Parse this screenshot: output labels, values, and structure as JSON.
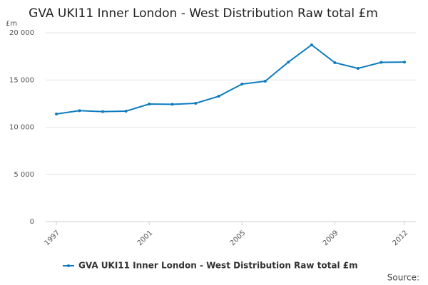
{
  "chart_data": {
    "type": "line",
    "title": "GVA UKI11 Inner London - West Distribution Raw total £m",
    "y_label": "£m",
    "source": "Source:",
    "x": [
      1997,
      1998,
      1999,
      2000,
      2001,
      2002,
      2003,
      2004,
      2005,
      2006,
      2007,
      2008,
      2009,
      2010,
      2011,
      2012
    ],
    "series": [
      {
        "name": "GVA UKI11 Inner London - West Distribution Raw total £m",
        "color": "#0d7bbf",
        "values": [
          11400,
          11750,
          11650,
          11700,
          12450,
          12420,
          12530,
          13280,
          14570,
          14870,
          16900,
          18720,
          16830,
          16230,
          16870,
          16900
        ]
      }
    ],
    "xlim": [
      1997,
      2012
    ],
    "xticks": [
      1997,
      2001,
      2005,
      2009,
      2012
    ],
    "ylim": [
      0,
      20000
    ],
    "yticks": [
      0,
      {
        "value": 5000,
        "label": "5 000"
      },
      {
        "value": 10000,
        "label": "10 000"
      },
      {
        "value": 15000,
        "label": "15 000"
      },
      {
        "value": 20000,
        "label": "20 000"
      }
    ],
    "grid": true,
    "legend": "bottom"
  }
}
